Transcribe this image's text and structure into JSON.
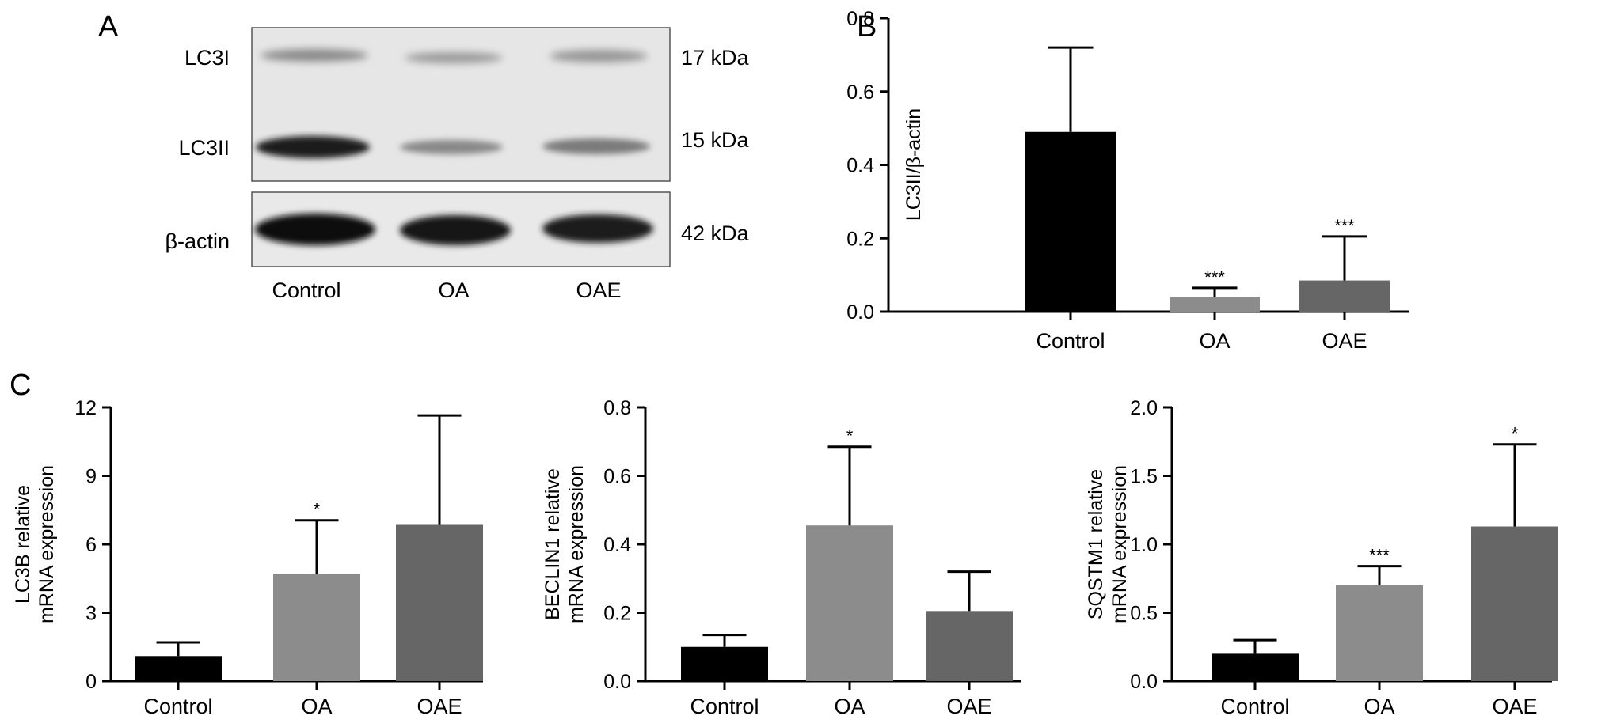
{
  "panels": {
    "a": "A",
    "b": "B",
    "c": "C"
  },
  "blot": {
    "bands_top": [
      "LC3I",
      "LC3II"
    ],
    "band_bottom": "β-actin",
    "sizes": [
      "17 kDa",
      "15 kDa",
      "42 kDa"
    ],
    "lanes": [
      "Control",
      "OA",
      "OAE"
    ]
  },
  "chart_data": [
    {
      "id": "B",
      "type": "bar",
      "categories": [
        "Control",
        "OA",
        "OAE"
      ],
      "values": [
        0.49,
        0.04,
        0.085
      ],
      "errors": [
        0.23,
        0.025,
        0.12
      ],
      "significance": [
        "",
        "***",
        "***"
      ],
      "colors": [
        "#000000",
        "#8c8c8c",
        "#666666"
      ],
      "ylabel": "LC3II/β-actin",
      "ylim": [
        0,
        0.8
      ],
      "yticks": [
        "0.0",
        "0.2",
        "0.4",
        "0.6",
        "0.8"
      ]
    },
    {
      "id": "C1",
      "type": "bar",
      "categories": [
        "Control",
        "OA",
        "OAE"
      ],
      "values": [
        1.1,
        4.7,
        6.85
      ],
      "errors": [
        0.6,
        2.35,
        4.8
      ],
      "significance": [
        "",
        "*",
        ""
      ],
      "colors": [
        "#000000",
        "#8c8c8c",
        "#666666"
      ],
      "ylabel": [
        "LC3B relative",
        "mRNA expression"
      ],
      "ylim": [
        0,
        12
      ],
      "yticks": [
        "0",
        "3",
        "6",
        "9",
        "12"
      ]
    },
    {
      "id": "C2",
      "type": "bar",
      "categories": [
        "Control",
        "OA",
        "OAE"
      ],
      "values": [
        0.1,
        0.455,
        0.205
      ],
      "errors": [
        0.035,
        0.23,
        0.115
      ],
      "significance": [
        "",
        "*",
        ""
      ],
      "colors": [
        "#000000",
        "#8c8c8c",
        "#666666"
      ],
      "ylabel": [
        "BECLIN1 relative",
        "mRNA expression"
      ],
      "ylim": [
        0,
        0.8
      ],
      "yticks": [
        "0.0",
        "0.2",
        "0.4",
        "0.6",
        "0.8"
      ]
    },
    {
      "id": "C3",
      "type": "bar",
      "categories": [
        "Control",
        "OA",
        "OAE"
      ],
      "values": [
        0.2,
        0.7,
        1.13
      ],
      "errors": [
        0.1,
        0.14,
        0.6
      ],
      "significance": [
        "",
        "***",
        "*"
      ],
      "colors": [
        "#000000",
        "#8c8c8c",
        "#666666"
      ],
      "ylabel": [
        "SQSTM1 relative",
        "mRNA expression"
      ],
      "ylim": [
        0,
        2.0
      ],
      "yticks": [
        "0.0",
        "0.5",
        "1.0",
        "1.5",
        "2.0"
      ]
    }
  ]
}
